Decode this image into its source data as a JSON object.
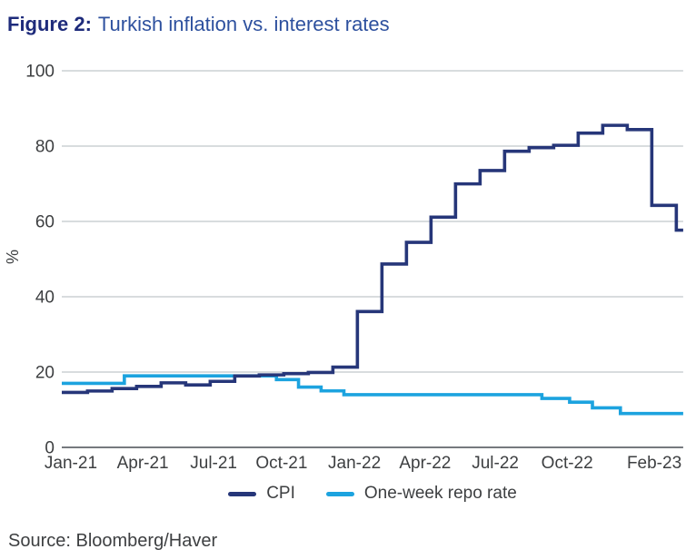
{
  "title": {
    "prefix": "Figure 2:",
    "text": "Turkish inflation vs. interest rates"
  },
  "source": "Source: Bloomberg/Haver",
  "colors": {
    "title_prefix": "#1e2b7b",
    "title_text": "#2d509e",
    "cpi_line": "#263679",
    "repo_line": "#1ca3df",
    "grid": "#cbd0d4",
    "axis": "#76797e",
    "text": "#3d3f41"
  },
  "legend": [
    {
      "label": "CPI",
      "color": "#263679"
    },
    {
      "label": "One-week repo rate",
      "color": "#1ca3df"
    }
  ],
  "chart_data": {
    "type": "line",
    "subtype": "step",
    "title": "Figure 2: Turkish inflation vs. interest rates",
    "xlabel": "",
    "ylabel": "%",
    "ylim": [
      0,
      100
    ],
    "yticks": [
      0,
      20,
      40,
      60,
      80,
      100
    ],
    "grid": "horizontal",
    "legend_position": "bottom",
    "t_end": 25.33,
    "xticks": [
      {
        "label": "Jan-21",
        "t": 0.37
      },
      {
        "label": "Apr-21",
        "t": 3.3
      },
      {
        "label": "Jul-21",
        "t": 6.19
      },
      {
        "label": "Oct-21",
        "t": 8.96
      },
      {
        "label": "Jan-22",
        "t": 11.93
      },
      {
        "label": "Apr-22",
        "t": 14.81
      },
      {
        "label": "Jul-22",
        "t": 17.67
      },
      {
        "label": "Oct-22",
        "t": 20.6
      },
      {
        "label": "Feb-23",
        "t": 24.15
      }
    ],
    "series": [
      {
        "name": "CPI",
        "color": "#263679",
        "note": "YoY %, each monthly print held as a step from its early-next-month release",
        "initial": {
          "month": "Dec-20",
          "value": 14.6
        },
        "monthly": [
          {
            "month": "Jan-21",
            "value": 14.97
          },
          {
            "month": "Feb-21",
            "value": 15.61
          },
          {
            "month": "Mar-21",
            "value": 16.19
          },
          {
            "month": "Apr-21",
            "value": 17.14
          },
          {
            "month": "May-21",
            "value": 16.59
          },
          {
            "month": "Jun-21",
            "value": 17.53
          },
          {
            "month": "Jul-21",
            "value": 18.95
          },
          {
            "month": "Aug-21",
            "value": 19.25
          },
          {
            "month": "Sep-21",
            "value": 19.58
          },
          {
            "month": "Oct-21",
            "value": 19.89
          },
          {
            "month": "Nov-21",
            "value": 21.31
          },
          {
            "month": "Dec-21",
            "value": 36.08
          },
          {
            "month": "Jan-22",
            "value": 48.69
          },
          {
            "month": "Feb-22",
            "value": 54.44
          },
          {
            "month": "Mar-22",
            "value": 61.14
          },
          {
            "month": "Apr-22",
            "value": 69.97
          },
          {
            "month": "May-22",
            "value": 73.5
          },
          {
            "month": "Jun-22",
            "value": 78.62
          },
          {
            "month": "Jul-22",
            "value": 79.6
          },
          {
            "month": "Aug-22",
            "value": 80.21
          },
          {
            "month": "Sep-22",
            "value": 83.45
          },
          {
            "month": "Oct-22",
            "value": 85.51
          },
          {
            "month": "Nov-22",
            "value": 84.39
          },
          {
            "month": "Dec-22",
            "value": 64.27
          },
          {
            "month": "Jan-23",
            "value": 57.68
          }
        ]
      },
      {
        "name": "One-week repo rate",
        "color": "#1ca3df",
        "note": "policy rate, stepped at CBRT decision dates (t in months from Jan-2021)",
        "steps": [
          {
            "t": 0.0,
            "rate": 17,
            "date": "Jan-21"
          },
          {
            "t": 2.55,
            "rate": 19,
            "date": "18-Mar-21"
          },
          {
            "t": 8.75,
            "rate": 18,
            "date": "23-Sep-21"
          },
          {
            "t": 9.65,
            "rate": 16,
            "date": "21-Oct-21"
          },
          {
            "t": 10.57,
            "rate": 15,
            "date": "18-Nov-21"
          },
          {
            "t": 11.5,
            "rate": 14,
            "date": "16-Dec-21"
          },
          {
            "t": 19.57,
            "rate": 13,
            "date": "18-Aug-22"
          },
          {
            "t": 20.7,
            "rate": 12,
            "date": "22-Sep-22"
          },
          {
            "t": 21.63,
            "rate": 10.5,
            "date": "20-Oct-22"
          },
          {
            "t": 22.77,
            "rate": 9,
            "date": "24-Nov-22"
          }
        ]
      }
    ]
  }
}
